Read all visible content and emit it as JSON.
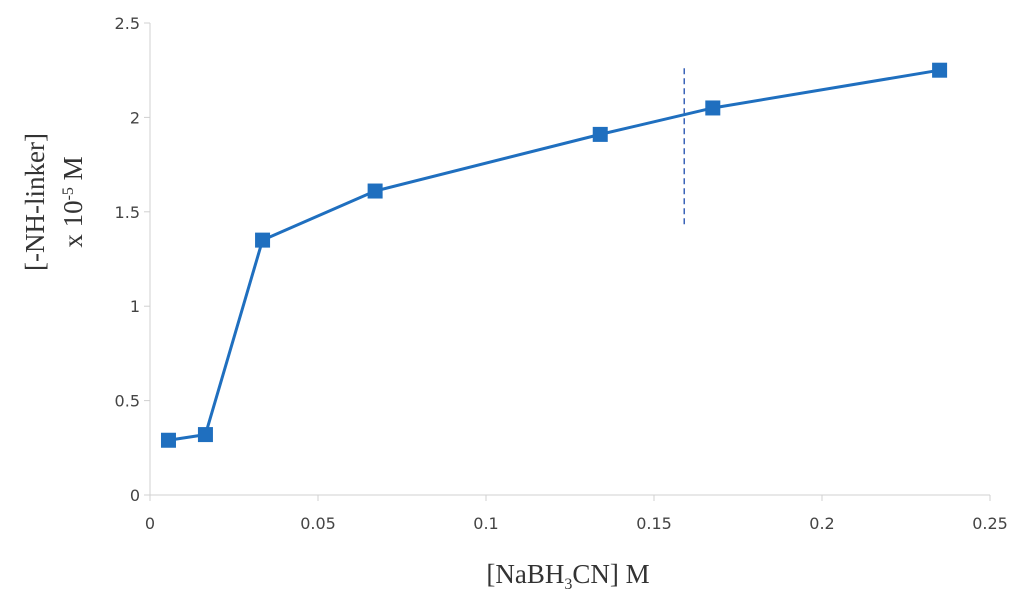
{
  "chart_data": {
    "type": "line",
    "title": "",
    "xlabel": {
      "pre": "[NaBH",
      "sub": "3",
      "post": "CN] M"
    },
    "ylabel": {
      "line1": "[-NH-linker]",
      "line2_pre": "x 10",
      "line2_sup": "-5",
      "line2_post": " M"
    },
    "xlim": [
      0,
      0.25
    ],
    "ylim": [
      0,
      2.5
    ],
    "x_ticks": [
      0,
      0.05,
      0.1,
      0.15,
      0.2,
      0.25
    ],
    "x_tick_labels": [
      "0",
      "0.05",
      "0.1",
      "0.15",
      "0.2",
      "0.25"
    ],
    "y_ticks": [
      0,
      0.5,
      1,
      1.5,
      2,
      2.5
    ],
    "y_tick_labels": [
      "0",
      "0.5",
      "1",
      "1.5",
      "2",
      "2.5"
    ],
    "grid": false,
    "legend": "none",
    "series": [
      {
        "x": [
          0.0055,
          0.0165,
          0.0335,
          0.067,
          0.134,
          0.1675,
          0.235
        ],
        "y": [
          0.29,
          0.32,
          1.35,
          1.61,
          1.91,
          2.05,
          2.25
        ],
        "color": "#1f6fbf",
        "marker": "square"
      }
    ],
    "annotations": [
      {
        "type": "vertical-dashed-line",
        "x": 0.159,
        "y_range": [
          1.42,
          2.26
        ],
        "color": "#3a63b8"
      }
    ]
  }
}
